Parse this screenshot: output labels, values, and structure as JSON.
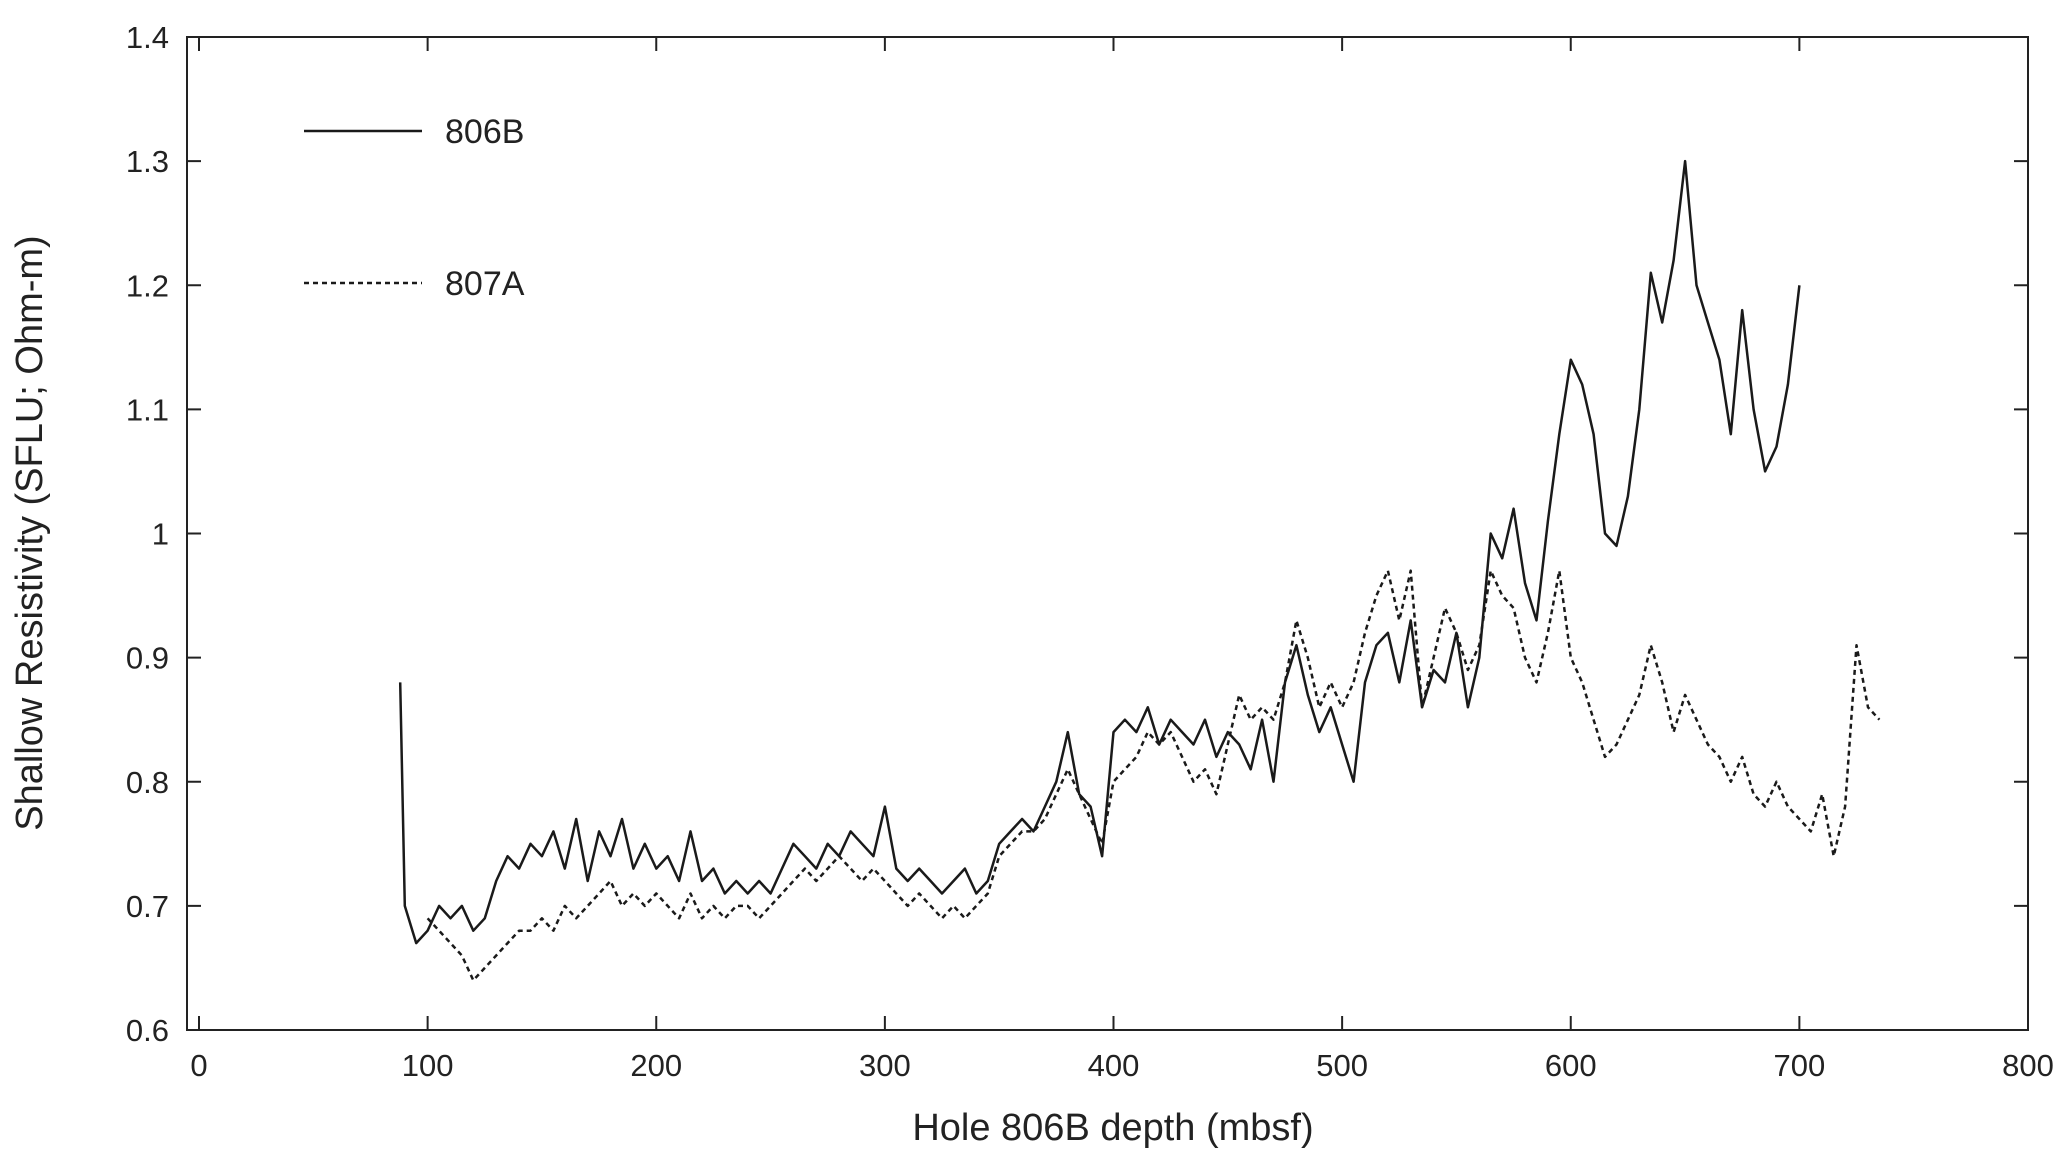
{
  "chart_data": {
    "type": "line",
    "x_label": "Hole 806B depth (mbsf)",
    "y_label": "Shallow Resistivity (SFLU; Ohm-m)",
    "xlim": [
      0,
      800
    ],
    "xticks": [
      0,
      100,
      200,
      300,
      400,
      500,
      600,
      700,
      800
    ],
    "ylim": [
      0.6,
      1.4
    ],
    "yticks": [
      0.6,
      0.7,
      0.8,
      0.9,
      1,
      1.1,
      1.2,
      1.3,
      1.4
    ],
    "legend": "upper-left",
    "series": [
      {
        "name": "806B",
        "color": "#1a1a1a",
        "line_style": "solid",
        "x": [
          88,
          90,
          95,
          100,
          105,
          110,
          115,
          120,
          125,
          130,
          135,
          140,
          145,
          150,
          155,
          160,
          165,
          170,
          175,
          180,
          185,
          190,
          195,
          200,
          205,
          210,
          215,
          220,
          225,
          230,
          235,
          240,
          245,
          250,
          255,
          260,
          265,
          270,
          275,
          280,
          285,
          290,
          295,
          300,
          305,
          310,
          315,
          320,
          325,
          330,
          335,
          340,
          345,
          350,
          355,
          360,
          365,
          370,
          375,
          380,
          385,
          390,
          395,
          400,
          405,
          410,
          415,
          420,
          425,
          430,
          435,
          440,
          445,
          450,
          455,
          460,
          465,
          470,
          475,
          480,
          485,
          490,
          495,
          500,
          505,
          510,
          515,
          520,
          525,
          530,
          535,
          540,
          545,
          550,
          555,
          560,
          565,
          570,
          575,
          580,
          585,
          590,
          595,
          600,
          605,
          610,
          615,
          620,
          625,
          630,
          635,
          640,
          645,
          650,
          655,
          660,
          665,
          670,
          675,
          680,
          685,
          690,
          695,
          700
        ],
        "values": [
          0.88,
          0.7,
          0.67,
          0.68,
          0.7,
          0.69,
          0.7,
          0.68,
          0.69,
          0.72,
          0.74,
          0.73,
          0.75,
          0.74,
          0.76,
          0.73,
          0.77,
          0.72,
          0.76,
          0.74,
          0.77,
          0.73,
          0.75,
          0.73,
          0.74,
          0.72,
          0.76,
          0.72,
          0.73,
          0.71,
          0.72,
          0.71,
          0.72,
          0.71,
          0.73,
          0.75,
          0.74,
          0.73,
          0.75,
          0.74,
          0.76,
          0.75,
          0.74,
          0.78,
          0.73,
          0.72,
          0.73,
          0.72,
          0.71,
          0.72,
          0.73,
          0.71,
          0.72,
          0.75,
          0.76,
          0.77,
          0.76,
          0.78,
          0.8,
          0.84,
          0.79,
          0.78,
          0.74,
          0.84,
          0.85,
          0.84,
          0.86,
          0.83,
          0.85,
          0.84,
          0.83,
          0.85,
          0.82,
          0.84,
          0.83,
          0.81,
          0.85,
          0.8,
          0.88,
          0.91,
          0.87,
          0.84,
          0.86,
          0.83,
          0.8,
          0.88,
          0.91,
          0.92,
          0.88,
          0.93,
          0.86,
          0.89,
          0.88,
          0.92,
          0.86,
          0.9,
          1.0,
          0.98,
          1.02,
          0.96,
          0.93,
          1.01,
          1.08,
          1.14,
          1.12,
          1.08,
          1.0,
          0.99,
          1.03,
          1.1,
          1.21,
          1.17,
          1.22,
          1.3,
          1.2,
          1.17,
          1.14,
          1.08,
          1.18,
          1.1,
          1.05,
          1.07,
          1.12,
          1.2
        ]
      },
      {
        "name": "807A",
        "color": "#1a1a1a",
        "line_style": "dotted",
        "x": [
          100,
          105,
          110,
          115,
          120,
          125,
          130,
          135,
          140,
          145,
          150,
          155,
          160,
          165,
          170,
          175,
          180,
          185,
          190,
          195,
          200,
          205,
          210,
          215,
          220,
          225,
          230,
          235,
          240,
          245,
          250,
          255,
          260,
          265,
          270,
          275,
          280,
          285,
          290,
          295,
          300,
          305,
          310,
          315,
          320,
          325,
          330,
          335,
          340,
          345,
          350,
          355,
          360,
          365,
          370,
          375,
          380,
          385,
          390,
          395,
          400,
          405,
          410,
          415,
          420,
          425,
          430,
          435,
          440,
          445,
          450,
          455,
          460,
          465,
          470,
          475,
          480,
          485,
          490,
          495,
          500,
          505,
          510,
          515,
          520,
          525,
          530,
          535,
          540,
          545,
          550,
          555,
          560,
          565,
          570,
          575,
          580,
          585,
          590,
          595,
          600,
          605,
          610,
          615,
          620,
          625,
          630,
          635,
          640,
          645,
          650,
          655,
          660,
          665,
          670,
          675,
          680,
          685,
          690,
          695,
          700,
          705,
          710,
          715,
          720,
          725,
          730,
          735
        ],
        "values": [
          0.69,
          0.68,
          0.67,
          0.66,
          0.64,
          0.65,
          0.66,
          0.67,
          0.68,
          0.68,
          0.69,
          0.68,
          0.7,
          0.69,
          0.7,
          0.71,
          0.72,
          0.7,
          0.71,
          0.7,
          0.71,
          0.7,
          0.69,
          0.71,
          0.69,
          0.7,
          0.69,
          0.7,
          0.7,
          0.69,
          0.7,
          0.71,
          0.72,
          0.73,
          0.72,
          0.73,
          0.74,
          0.73,
          0.72,
          0.73,
          0.72,
          0.71,
          0.7,
          0.71,
          0.7,
          0.69,
          0.7,
          0.69,
          0.7,
          0.71,
          0.74,
          0.75,
          0.76,
          0.76,
          0.77,
          0.79,
          0.81,
          0.79,
          0.77,
          0.75,
          0.8,
          0.81,
          0.82,
          0.84,
          0.83,
          0.84,
          0.82,
          0.8,
          0.81,
          0.79,
          0.83,
          0.87,
          0.85,
          0.86,
          0.85,
          0.88,
          0.93,
          0.9,
          0.86,
          0.88,
          0.86,
          0.88,
          0.92,
          0.95,
          0.97,
          0.93,
          0.97,
          0.86,
          0.9,
          0.94,
          0.92,
          0.89,
          0.91,
          0.97,
          0.95,
          0.94,
          0.9,
          0.88,
          0.92,
          0.97,
          0.9,
          0.88,
          0.85,
          0.82,
          0.83,
          0.85,
          0.87,
          0.91,
          0.88,
          0.84,
          0.87,
          0.85,
          0.83,
          0.82,
          0.8,
          0.82,
          0.79,
          0.78,
          0.8,
          0.78,
          0.77,
          0.76,
          0.79,
          0.74,
          0.78,
          0.91,
          0.86,
          0.85
        ]
      }
    ]
  }
}
